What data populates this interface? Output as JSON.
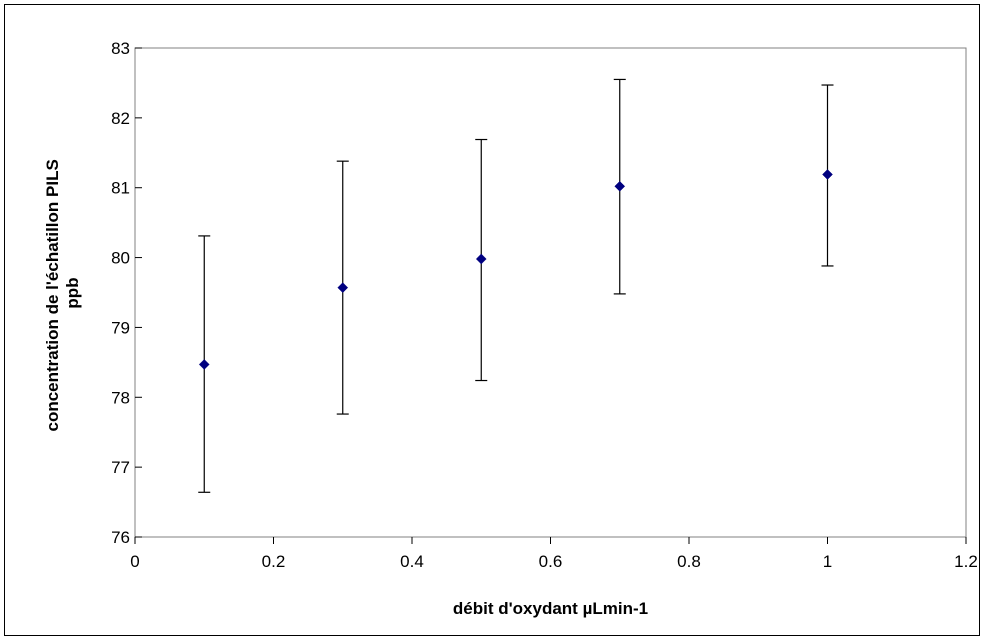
{
  "chart_data": {
    "type": "scatter",
    "xlabel": "débit d'oxydant µLmin-1",
    "ylabel_lines": [
      "concentration de l'échatillon PILS",
      "ppb"
    ],
    "xlim": [
      0,
      1.2
    ],
    "ylim": [
      76,
      83
    ],
    "x_ticks": [
      "0",
      "0.2",
      "0.4",
      "0.6",
      "0.8",
      "1",
      "1.2"
    ],
    "y_ticks": [
      "76",
      "77",
      "78",
      "79",
      "80",
      "81",
      "82",
      "83"
    ],
    "x_tick_values": [
      0,
      0.2,
      0.4,
      0.6,
      0.8,
      1.0,
      1.2
    ],
    "y_tick_values": [
      76,
      77,
      78,
      79,
      80,
      81,
      82,
      83
    ],
    "grid": false,
    "legend": "none",
    "series": [
      {
        "marker": "diamond",
        "color": "#000080",
        "points": [
          {
            "x": 0.1,
            "y": 78.47,
            "y_low": 76.64,
            "y_high": 80.31
          },
          {
            "x": 0.3,
            "y": 79.57,
            "y_low": 77.76,
            "y_high": 81.38
          },
          {
            "x": 0.5,
            "y": 79.98,
            "y_low": 78.24,
            "y_high": 81.69
          },
          {
            "x": 0.7,
            "y": 81.02,
            "y_low": 79.48,
            "y_high": 82.55
          },
          {
            "x": 1.0,
            "y": 81.19,
            "y_low": 79.88,
            "y_high": 82.47
          }
        ]
      }
    ]
  }
}
